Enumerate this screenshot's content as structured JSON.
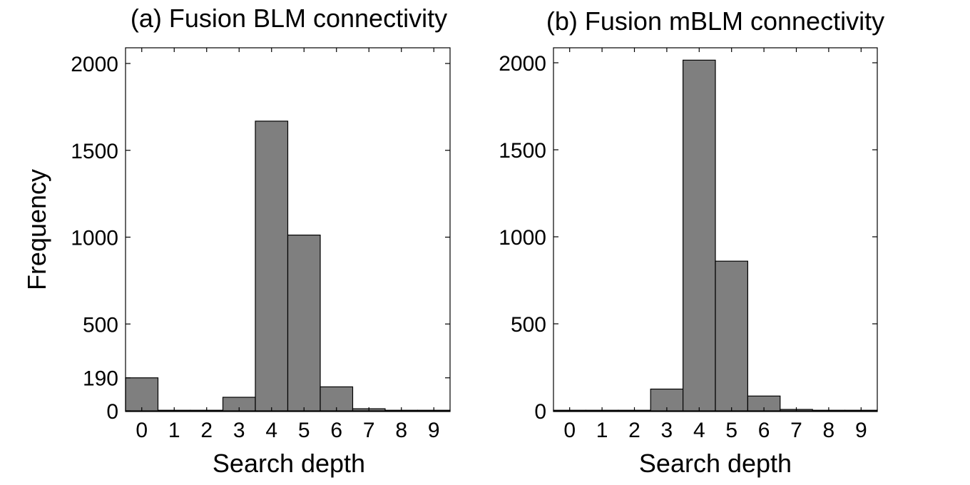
{
  "chart_data": [
    {
      "type": "bar",
      "title": "(a) Fusion BLM connectivity",
      "xlabel": "Search depth",
      "ylabel": "Frequency",
      "categories": [
        "0",
        "1",
        "2",
        "3",
        "4",
        "5",
        "6",
        "7",
        "8",
        "9"
      ],
      "values": [
        190,
        0,
        0,
        78,
        1668,
        1012,
        138,
        12,
        0,
        0
      ],
      "xticks": [
        "0",
        "1",
        "2",
        "3",
        "4",
        "5",
        "6",
        "7",
        "8",
        "9"
      ],
      "yticks": [
        0,
        190,
        500,
        1000,
        1500,
        2000
      ],
      "ylim": [
        0,
        2100
      ],
      "bar_color": "#7f7f7f",
      "grid": false
    },
    {
      "type": "bar",
      "title": "(b) Fusion mBLM connectivity",
      "xlabel": "Search depth",
      "ylabel": "",
      "categories": [
        "0",
        "1",
        "2",
        "3",
        "4",
        "5",
        "6",
        "7",
        "8",
        "9"
      ],
      "values": [
        0,
        0,
        0,
        125,
        2015,
        860,
        85,
        8,
        0,
        0
      ],
      "xticks": [
        "0",
        "1",
        "2",
        "3",
        "4",
        "5",
        "6",
        "7",
        "8",
        "9"
      ],
      "yticks": [
        0,
        500,
        1000,
        1500,
        2000
      ],
      "ylim": [
        0,
        2100
      ],
      "bar_color": "#7f7f7f",
      "grid": false
    }
  ]
}
